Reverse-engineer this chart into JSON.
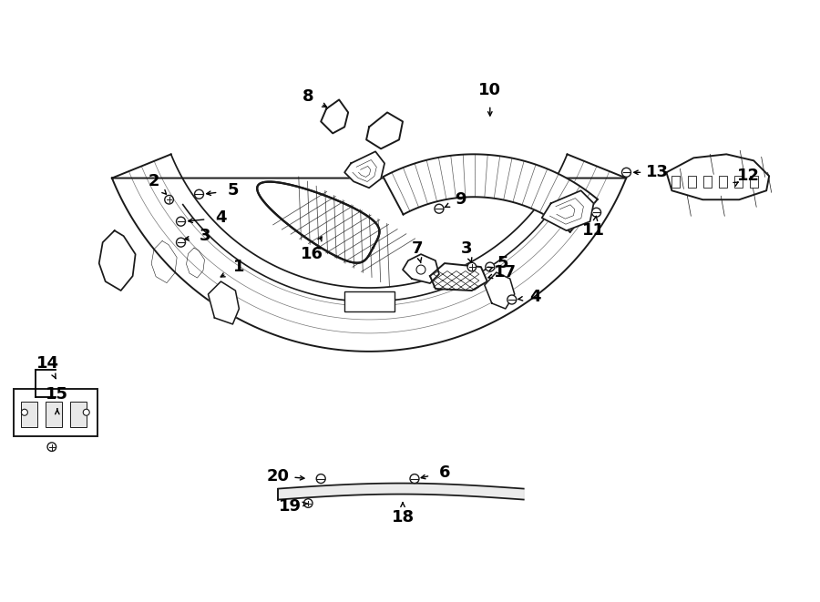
{
  "bg_color": "#ffffff",
  "line_color": "#1a1a1a",
  "fig_w": 9.0,
  "fig_h": 6.61,
  "lw_main": 1.4,
  "lw_thin": 0.7,
  "fs_label": 13
}
